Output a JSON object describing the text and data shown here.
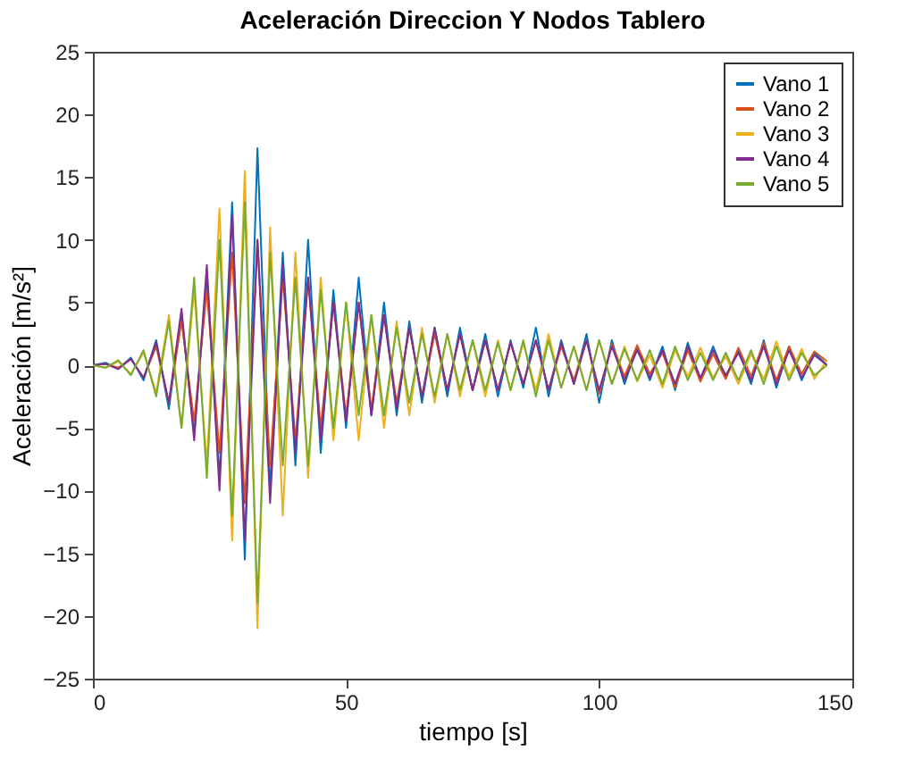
{
  "chart_data": {
    "type": "line",
    "title": "Aceleración Direccion Y Nodos Tablero",
    "xlabel": "tiempo [s]",
    "ylabel": "Aceleración [m/s²]",
    "x": [
      0,
      2.5,
      5,
      7.5,
      10,
      12.5,
      15,
      17.5,
      20,
      22.5,
      25,
      27.5,
      30,
      32.5,
      35,
      37.5,
      40,
      42.5,
      45,
      47.5,
      50,
      52.5,
      55,
      57.5,
      60,
      62.5,
      65,
      67.5,
      70,
      72.5,
      75,
      77.5,
      80,
      82.5,
      85,
      87.5,
      90,
      92.5,
      95,
      97.5,
      100,
      102.5,
      105,
      107.5,
      110,
      112.5,
      115,
      117.5,
      120,
      122.5,
      125,
      127.5,
      130,
      132.5,
      135,
      137.5,
      140,
      142.5,
      145
    ],
    "series": [
      {
        "name": "Vano 1",
        "color": "#0072bd",
        "values": [
          0,
          0.2,
          -0.3,
          0.6,
          -1.2,
          2,
          -3.5,
          4,
          -5.5,
          7,
          -9,
          13,
          -15.5,
          17.3,
          -10,
          9,
          -8,
          10,
          -7,
          6,
          -5,
          7,
          -4,
          5,
          -4,
          3.5,
          -3,
          3,
          -2.5,
          3,
          -2,
          2.5,
          -2.5,
          2,
          -1.8,
          3,
          -2.5,
          2,
          -1.5,
          2.5,
          -3,
          2,
          -1.5,
          1.5,
          -1.2,
          1.5,
          -2,
          1.8,
          -1.2,
          1.5,
          -1,
          1.2,
          -1.5,
          2,
          -1.8,
          1.5,
          -1.2,
          1,
          0
        ]
      },
      {
        "name": "Vano 2",
        "color": "#d95319",
        "values": [
          0,
          0.1,
          -0.2,
          0.5,
          -1,
          1.5,
          -3,
          3.5,
          -4.5,
          6,
          -7,
          9,
          -11,
          10,
          -8,
          7,
          -6,
          7,
          -5,
          5,
          -4,
          5,
          -3.5,
          4,
          -3,
          3,
          -2.5,
          2.5,
          -2,
          2.5,
          -2,
          2,
          -2,
          1.8,
          -1.5,
          2,
          -2,
          1.5,
          -1.2,
          2,
          -2.3,
          1.7,
          -0.9,
          1.6,
          -0.7,
          1,
          -1.8,
          1.2,
          -1.3,
          0.9,
          -1.1,
          1.4,
          -0.9,
          1.8,
          -1.2,
          1.5,
          -0.7,
          1.1,
          0.3
        ]
      },
      {
        "name": "Vano 3",
        "color": "#edb120",
        "values": [
          0,
          -0.2,
          0.3,
          -0.7,
          1,
          -2.2,
          4,
          -5,
          6,
          -8,
          12.5,
          -14,
          15.5,
          -21,
          11,
          -12,
          9,
          -9,
          7,
          -6,
          5,
          -6,
          4,
          -5,
          3.5,
          -4,
          3,
          -3,
          2.5,
          -2.5,
          2,
          -2.5,
          2,
          -2,
          1.8,
          -2,
          2.5,
          -1.8,
          1.5,
          -2,
          2,
          -1.5,
          1.5,
          -1.3,
          0.8,
          -1.8,
          1.2,
          -0.9,
          1.4,
          -1,
          0.7,
          -1.5,
          0.9,
          -1.1,
          1.9,
          -0.9,
          1.3,
          -1.1,
          0.4
        ]
      },
      {
        "name": "Vano 4",
        "color": "#7e2f8e",
        "values": [
          0,
          0.1,
          -0.3,
          0.5,
          -1,
          1.8,
          -3,
          4.5,
          -6,
          8,
          -10,
          12,
          -14,
          10,
          -11,
          8,
          -7,
          7,
          -6,
          5,
          -4.5,
          5,
          -4,
          4,
          -3.5,
          3,
          -2.5,
          3,
          -2,
          2.5,
          -2,
          2,
          -2,
          1.8,
          -1.5,
          2,
          -2,
          1.8,
          -1.5,
          2,
          -2,
          1.5,
          -1.2,
          1.2,
          -1,
          1.2,
          -1.5,
          1.5,
          -1,
          1.2,
          -0.8,
          1,
          -1.2,
          1.5,
          -1.5,
          1.2,
          -1,
          0.8,
          0
        ]
      },
      {
        "name": "Vano 5",
        "color": "#77ac30",
        "values": [
          0,
          -0.2,
          0.4,
          -0.8,
          1.2,
          -2.5,
          3.5,
          -5,
          7,
          -9,
          10,
          -12,
          13,
          -19,
          9,
          -8,
          7,
          -8,
          6,
          -5,
          5,
          -4,
          4,
          -4,
          3,
          -3,
          2.5,
          -2.5,
          2.5,
          -2,
          2,
          -2,
          1.8,
          -2,
          2,
          -2.5,
          2,
          -1.8,
          1.5,
          -2,
          2,
          -1.5,
          1.3,
          -1.2,
          1.2,
          -1.5,
          1.5,
          -1.2,
          1,
          -1.2,
          1,
          -1.2,
          1.2,
          -1.5,
          1.5,
          -1.2,
          1,
          -0.8,
          0
        ]
      }
    ],
    "xlim": [
      0,
      150
    ],
    "xticks": [
      0,
      50,
      100,
      150
    ],
    "ylim": [
      -25,
      25
    ],
    "yticks": [
      -25,
      -20,
      -15,
      -10,
      -5,
      0,
      5,
      10,
      15,
      20,
      25
    ],
    "grid": false,
    "legend": "top right",
    "marker": "none",
    "line_style": "solid"
  }
}
